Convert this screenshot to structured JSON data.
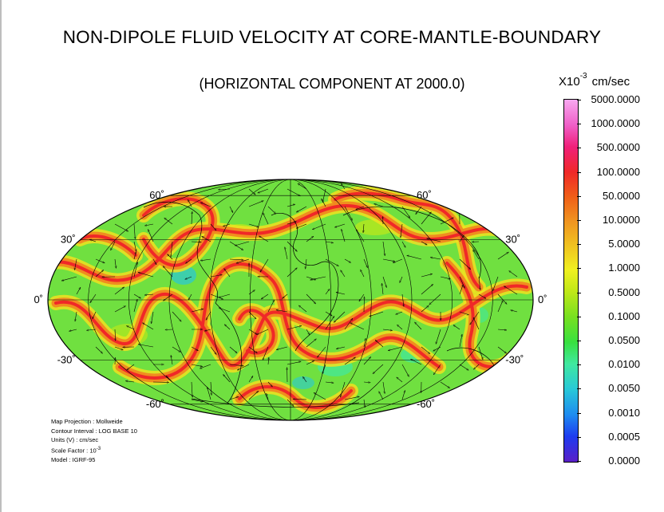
{
  "title": "NON-DIPOLE FLUID VELOCITY AT CORE-MANTLE-BOUNDARY",
  "subtitle": "(HORIZONTAL COMPONENT AT 2000.0)",
  "units": {
    "prefix": "X10",
    "exponent": "-3",
    "unit": "cm/sec"
  },
  "map": {
    "projection": "Mollweide",
    "lat_labels_left": [
      "60˚",
      "30˚",
      "0˚",
      "-30˚",
      "-60˚"
    ],
    "lat_labels_right": [
      "60˚",
      "30˚",
      "0˚",
      "-30˚",
      "-60˚"
    ],
    "latitudes": [
      60,
      30,
      0,
      -30,
      -60
    ]
  },
  "notes": {
    "projection": "Map Projection : Mollweide",
    "contour": "Contour Interval : LOG BASE 10",
    "units": "Units (V) : cm/sec",
    "scale_prefix": "Scale Factor : 10",
    "scale_exp": "-3",
    "model": "Model : IGRF-95"
  },
  "colorbar": {
    "labels": [
      "5000.0000",
      "1000.0000",
      "500.0000",
      "100.0000",
      "50.0000",
      "10.0000",
      "5.0000",
      "1.0000",
      "0.5000",
      "0.1000",
      "0.0500",
      "0.0100",
      "0.0050",
      "0.0010",
      "0.0005",
      "0.0000"
    ],
    "colors": [
      "#5a20c8",
      "#1e3cf0",
      "#1e8cf0",
      "#28c8d8",
      "#40e8a0",
      "#38e040",
      "#78e020",
      "#c0e818",
      "#f0f020",
      "#f0c020",
      "#f09020",
      "#f06018",
      "#f02828",
      "#f0207a",
      "#f060c8",
      "#f8a8f0"
    ]
  },
  "colors": {
    "field": "#70e040",
    "band_core": "#f02828",
    "band_mid": "#f08820",
    "band_outer": "#f0e020"
  }
}
